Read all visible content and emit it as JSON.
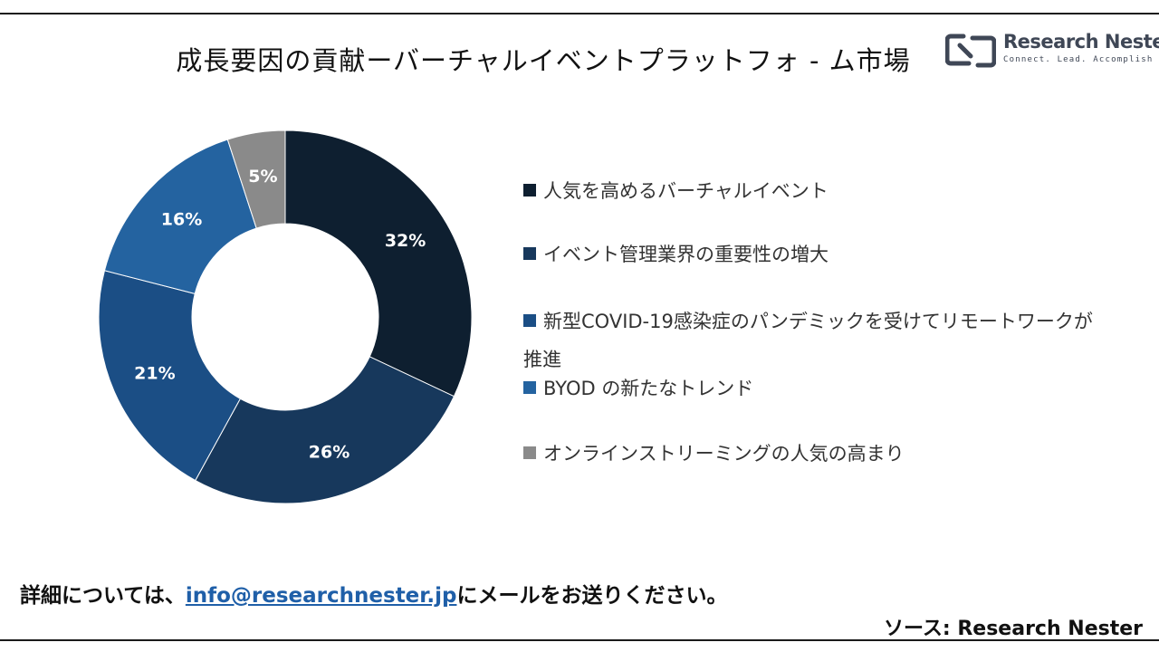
{
  "header": {
    "title": "成長要因の貢献ーバーチャルイベントプラットフォ - ム市場"
  },
  "logo": {
    "name": "Research Nester",
    "tagline": "Connect. Lead. Accomplish",
    "icon": "research-nester-logo-icon",
    "color": "#3f4756"
  },
  "chart_data": {
    "type": "pie",
    "donut": true,
    "legend_position": "right",
    "categories": [
      "人気を高めるバーチャルイベント",
      "イベント管理業界の重要性の増大",
      "新型COVID-19感染症のパンデミックを受けてリモートワークが推進",
      "BYOD の新たなトレンド",
      "オンラインストリーミングの人気の高まり"
    ],
    "values": [
      32,
      26,
      21,
      16,
      5
    ],
    "labels": [
      "32%",
      "26%",
      "21%",
      "16%",
      "5%"
    ],
    "colors": [
      "#0e1f30",
      "#17385c",
      "#1b4e85",
      "#2463a0",
      "#8a8a8a"
    ]
  },
  "footer": {
    "note_prefix": "詳細については、",
    "email": "info@researchnester.jp",
    "note_suffix": "にメールをお送りください。",
    "source": "ソース: Research Nester"
  }
}
